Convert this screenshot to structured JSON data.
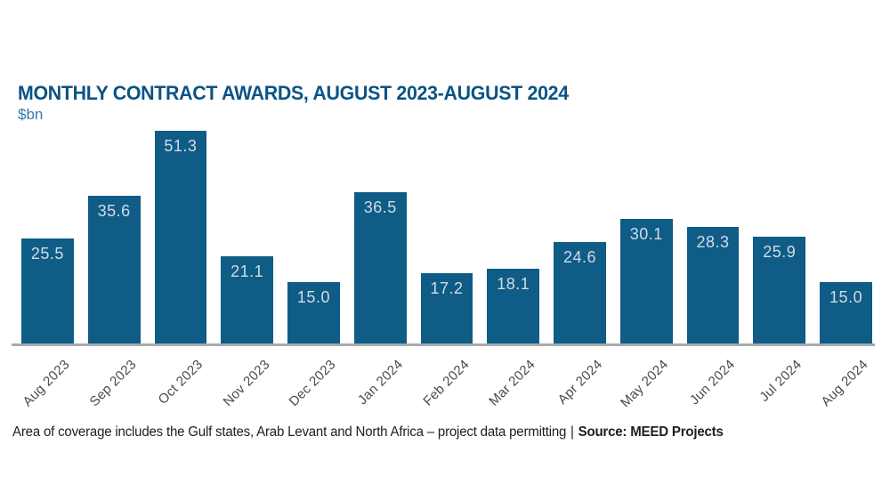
{
  "header": {
    "title": "MONTHLY CONTRACT AWARDS, AUGUST 2023-AUGUST 2024",
    "unit_label": "$bn"
  },
  "footer": {
    "note": "Area of coverage includes the Gulf states, Arab Levant and North Africa – project data permitting",
    "separator": "|",
    "source": "Source: MEED Projects"
  },
  "colors": {
    "title": "#0a5385",
    "unit": "#2d7eb1",
    "bar": "#0f5c87",
    "value_label": "#d2dce3",
    "axis_line": "#a7a9ac",
    "x_label": "#4b4b4d",
    "footer_text": "#1e1e1e",
    "background": "#ffffff"
  },
  "chart_data": {
    "type": "bar",
    "title": "MONTHLY CONTRACT AWARDS, AUGUST 2023-AUGUST 2024",
    "subtitle": "$bn",
    "xlabel": "",
    "ylabel": "$bn",
    "categories": [
      "Aug 2023",
      "Sep 2023",
      "Oct 2023",
      "Nov 2023",
      "Dec 2023",
      "Jan 2024",
      "Feb 2024",
      "Mar 2024",
      "Apr 2024",
      "May 2024",
      "Jun 2024",
      "Jul 2024",
      "Aug 2024"
    ],
    "values": [
      25.5,
      35.6,
      51.3,
      21.1,
      15.0,
      36.5,
      17.2,
      18.1,
      24.6,
      30.1,
      28.3,
      25.9,
      15.0
    ],
    "ylim": [
      0,
      51.3
    ],
    "grid": false,
    "legend": false,
    "value_labels_shown": true,
    "annotation": "Area of coverage includes the Gulf states, Arab Levant and North Africa – project data permitting | Source: MEED Projects"
  }
}
